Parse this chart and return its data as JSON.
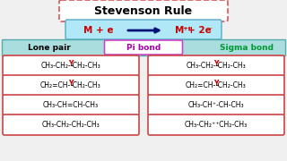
{
  "title": "Stevenson Rule",
  "header_lone": "Lone pair",
  "header_pi": "Pi bond",
  "header_sigma": "Sigma bond",
  "left_rows": [
    "CH₃-CH₂-Y-CH₂-CH₃",
    "CH₂=CH-Y-CH₂-CH₃",
    "CH₃-CH=CH-CH₃",
    "CH₃-CH₂-CH₂-CH₃"
  ],
  "right_rows": [
    "CH₃-CH₂-Y-CH₂-CH₃",
    "CH₂=CH-Y-CH₂-CH₃",
    "CH₃-CH⁺-CH-CH₃",
    "CH₃-CH₂⁺⁺CH₂-CH₃"
  ],
  "title_border": "#dd5555",
  "title_border_style": "dashed",
  "eq_bg": "#b0e8f8",
  "eq_border": "#55aacc",
  "header_bg": "#aadddd",
  "pi_border": "#cc44cc",
  "sigma_color": "#009933",
  "box_border": "#cc4444",
  "bg_color": "#f0f0f0",
  "y_color": "#cc0000",
  "right_row3_plus_color": "#cc0000",
  "right_row4_plus_color": "#cc0000"
}
